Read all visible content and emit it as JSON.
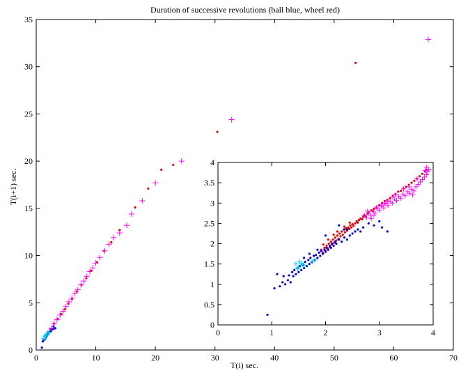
{
  "chart_data": [
    {
      "id": "main",
      "type": "scatter",
      "title": "Duration of successive revolutions (ball blue, wheel red)",
      "xlabel": "T(i) sec.",
      "ylabel": "T(i+1) sec.",
      "xlim": [
        0,
        70
      ],
      "ylim": [
        0,
        35
      ],
      "xticks": [
        "0",
        "10",
        "20",
        "30",
        "40",
        "50",
        "60",
        "70"
      ],
      "yticks": [
        "0",
        "5",
        "10",
        "15",
        "20",
        "25",
        "30",
        "35"
      ],
      "grid": false,
      "series": [
        {
          "marker": "dot",
          "color": "#e00000",
          "points": [
            [
              1.6,
              1.6
            ],
            [
              2.0,
              1.9
            ],
            [
              2.4,
              2.2
            ],
            [
              3.0,
              2.8
            ],
            [
              3.6,
              3.3
            ],
            [
              4.2,
              3.8
            ],
            [
              4.8,
              4.3
            ],
            [
              5.4,
              4.9
            ],
            [
              6.0,
              5.4
            ],
            [
              6.8,
              6.2
            ],
            [
              7.6,
              6.9
            ],
            [
              8.4,
              7.6
            ],
            [
              9.2,
              8.4
            ],
            [
              10.2,
              9.3
            ],
            [
              11.4,
              10.5
            ],
            [
              12.6,
              11.4
            ],
            [
              14.0,
              12.7
            ],
            [
              16.6,
              15.1
            ],
            [
              18.8,
              17.1
            ],
            [
              21.0,
              19.1
            ],
            [
              23.0,
              19.6
            ],
            [
              30.4,
              23.1
            ],
            [
              53.6,
              30.4
            ]
          ]
        },
        {
          "marker": "dot",
          "color": "#0000dd",
          "points": [
            [
              0.95,
              0.25
            ],
            [
              1.1,
              0.9
            ],
            [
              1.2,
              1.0
            ],
            [
              1.4,
              1.1
            ],
            [
              1.6,
              1.3
            ],
            [
              1.8,
              1.5
            ],
            [
              2.0,
              1.7
            ],
            [
              2.3,
              1.9
            ],
            [
              2.5,
              2.0
            ],
            [
              2.8,
              2.2
            ],
            [
              3.1,
              2.3
            ],
            [
              3.2,
              2.3
            ],
            [
              2.6,
              2.2
            ],
            [
              2.9,
              2.5
            ]
          ]
        },
        {
          "marker": "plus",
          "color": "#ff00ff",
          "points": [
            [
              2.5,
              2.3
            ],
            [
              3.0,
              2.8
            ],
            [
              3.5,
              3.2
            ],
            [
              4.0,
              3.7
            ],
            [
              4.5,
              4.1
            ],
            [
              5.0,
              4.6
            ],
            [
              5.5,
              5.1
            ],
            [
              6.0,
              5.5
            ],
            [
              6.5,
              6.0
            ],
            [
              7.0,
              6.4
            ],
            [
              7.5,
              6.9
            ],
            [
              8.0,
              7.3
            ],
            [
              8.5,
              7.8
            ],
            [
              9.0,
              8.3
            ],
            [
              9.5,
              8.7
            ],
            [
              10.0,
              9.2
            ],
            [
              10.7,
              9.8
            ],
            [
              11.5,
              10.5
            ],
            [
              12.2,
              11.2
            ],
            [
              13.0,
              11.9
            ],
            [
              14.0,
              12.4
            ],
            [
              15.2,
              13.2
            ],
            [
              16.0,
              14.4
            ],
            [
              17.8,
              15.8
            ],
            [
              20.0,
              17.7
            ],
            [
              24.4,
              20.0
            ],
            [
              32.8,
              24.4
            ],
            [
              65.8,
              32.9
            ]
          ]
        },
        {
          "marker": "plus",
          "color": "#00c8ff",
          "points": [
            [
              1.3,
              1.2
            ],
            [
              1.45,
              1.4
            ],
            [
              1.6,
              1.5
            ],
            [
              1.8,
              1.65
            ],
            [
              2.0,
              1.8
            ],
            [
              2.2,
              1.9
            ]
          ]
        }
      ]
    },
    {
      "id": "inset",
      "type": "scatter",
      "title": "",
      "xlabel": "",
      "ylabel": "",
      "xlim": [
        0,
        4
      ],
      "ylim": [
        0,
        4
      ],
      "xticks": [
        "0",
        "1",
        "2",
        "3",
        "4"
      ],
      "yticks": [
        "0",
        "0.5",
        "1",
        "1.5",
        "2",
        "2.5",
        "3",
        "3.5",
        "4"
      ],
      "grid": false,
      "series": [
        {
          "marker": "dot",
          "color": "#e00000",
          "points": [
            [
              1.92,
              1.85
            ],
            [
              1.95,
              1.78
            ],
            [
              1.98,
              1.9
            ],
            [
              2.0,
              1.82
            ],
            [
              2.02,
              1.95
            ],
            [
              2.04,
              1.88
            ],
            [
              2.06,
              2.0
            ],
            [
              2.08,
              1.92
            ],
            [
              2.1,
              2.05
            ],
            [
              2.12,
              1.98
            ],
            [
              2.14,
              2.1
            ],
            [
              2.16,
              2.02
            ],
            [
              2.18,
              2.15
            ],
            [
              2.2,
              2.08
            ],
            [
              2.22,
              2.2
            ],
            [
              2.24,
              2.12
            ],
            [
              2.26,
              2.25
            ],
            [
              2.28,
              2.18
            ],
            [
              2.3,
              2.3
            ],
            [
              2.32,
              2.22
            ],
            [
              2.34,
              2.35
            ],
            [
              2.36,
              2.28
            ],
            [
              2.38,
              2.38
            ],
            [
              2.4,
              2.32
            ],
            [
              2.42,
              2.4
            ],
            [
              2.44,
              2.36
            ],
            [
              2.46,
              2.45
            ],
            [
              2.48,
              2.4
            ],
            [
              2.5,
              2.48
            ],
            [
              2.52,
              2.44
            ],
            [
              2.55,
              2.5
            ],
            [
              2.58,
              2.55
            ],
            [
              2.6,
              2.52
            ],
            [
              2.62,
              2.58
            ],
            [
              2.65,
              2.62
            ],
            [
              2.68,
              2.6
            ],
            [
              2.7,
              2.66
            ],
            [
              2.72,
              2.7
            ],
            [
              2.75,
              2.68
            ],
            [
              2.78,
              2.74
            ],
            [
              2.8,
              2.78
            ],
            [
              2.85,
              2.82
            ],
            [
              2.88,
              2.8
            ],
            [
              2.9,
              2.86
            ],
            [
              2.95,
              2.9
            ],
            [
              3.0,
              2.95
            ],
            [
              3.05,
              3.0
            ],
            [
              3.1,
              3.05
            ],
            [
              3.15,
              3.08
            ],
            [
              3.2,
              3.12
            ],
            [
              3.25,
              3.18
            ],
            [
              3.3,
              3.22
            ],
            [
              3.35,
              3.28
            ],
            [
              3.4,
              3.3
            ],
            [
              3.45,
              3.36
            ],
            [
              3.5,
              3.4
            ],
            [
              3.55,
              3.45
            ],
            [
              3.6,
              3.5
            ],
            [
              3.65,
              3.55
            ],
            [
              3.7,
              3.6
            ],
            [
              3.75,
              3.66
            ],
            [
              3.8,
              3.72
            ],
            [
              3.85,
              3.78
            ],
            [
              3.88,
              3.82
            ],
            [
              2.22,
              2.3
            ],
            [
              2.35,
              2.42
            ],
            [
              2.45,
              2.52
            ],
            [
              2.05,
              2.1
            ],
            [
              2.15,
              2.22
            ],
            [
              1.96,
              1.98
            ]
          ]
        },
        {
          "marker": "dot",
          "color": "#0000dd",
          "points": [
            [
              0.92,
              0.25
            ],
            [
              1.05,
              0.9
            ],
            [
              1.1,
              1.25
            ],
            [
              1.15,
              0.95
            ],
            [
              1.2,
              1.05
            ],
            [
              1.22,
              1.2
            ],
            [
              1.25,
              1.0
            ],
            [
              1.3,
              1.1
            ],
            [
              1.32,
              1.22
            ],
            [
              1.35,
              1.05
            ],
            [
              1.38,
              1.3
            ],
            [
              1.4,
              1.2
            ],
            [
              1.42,
              1.35
            ],
            [
              1.45,
              1.25
            ],
            [
              1.48,
              1.4
            ],
            [
              1.5,
              1.3
            ],
            [
              1.52,
              1.45
            ],
            [
              1.55,
              1.35
            ],
            [
              1.58,
              1.48
            ],
            [
              1.6,
              1.4
            ],
            [
              1.62,
              1.55
            ],
            [
              1.65,
              1.45
            ],
            [
              1.68,
              1.6
            ],
            [
              1.7,
              1.5
            ],
            [
              1.72,
              1.65
            ],
            [
              1.75,
              1.55
            ],
            [
              1.78,
              1.7
            ],
            [
              1.8,
              1.6
            ],
            [
              1.82,
              1.72
            ],
            [
              1.85,
              1.65
            ],
            [
              1.88,
              1.78
            ],
            [
              1.9,
              1.7
            ],
            [
              1.92,
              1.82
            ],
            [
              1.95,
              1.75
            ],
            [
              1.98,
              1.85
            ],
            [
              2.0,
              1.8
            ],
            [
              2.02,
              1.9
            ],
            [
              2.05,
              1.85
            ],
            [
              2.08,
              1.95
            ],
            [
              2.1,
              1.9
            ],
            [
              2.12,
              2.0
            ],
            [
              2.15,
              1.95
            ],
            [
              2.18,
              2.05
            ],
            [
              2.2,
              2.0
            ],
            [
              2.25,
              2.1
            ],
            [
              2.3,
              2.05
            ],
            [
              2.35,
              2.15
            ],
            [
              2.4,
              2.1
            ],
            [
              2.45,
              2.2
            ],
            [
              2.5,
              2.25
            ],
            [
              2.55,
              2.3
            ],
            [
              2.6,
              2.35
            ],
            [
              2.65,
              2.3
            ],
            [
              2.7,
              2.4
            ],
            [
              2.8,
              2.5
            ],
            [
              2.9,
              2.45
            ],
            [
              3.0,
              2.55
            ],
            [
              3.15,
              2.3
            ],
            [
              3.05,
              2.4
            ],
            [
              2.25,
              2.45
            ],
            [
              2.35,
              2.35
            ],
            [
              1.6,
              1.65
            ],
            [
              1.7,
              1.75
            ],
            [
              1.85,
              1.85
            ],
            [
              2.0,
              2.2
            ],
            [
              2.4,
              2.35
            ]
          ]
        },
        {
          "marker": "plus",
          "color": "#ff00ff",
          "points": [
            [
              2.72,
              2.7
            ],
            [
              2.76,
              2.64
            ],
            [
              2.8,
              2.75
            ],
            [
              2.84,
              2.7
            ],
            [
              2.88,
              2.8
            ],
            [
              2.92,
              2.76
            ],
            [
              2.96,
              2.86
            ],
            [
              3.0,
              2.82
            ],
            [
              3.04,
              2.92
            ],
            [
              3.08,
              2.88
            ],
            [
              3.12,
              2.98
            ],
            [
              3.16,
              2.94
            ],
            [
              3.2,
              3.04
            ],
            [
              3.24,
              3.0
            ],
            [
              3.28,
              3.1
            ],
            [
              3.32,
              3.06
            ],
            [
              3.36,
              3.16
            ],
            [
              3.4,
              3.12
            ],
            [
              3.44,
              3.22
            ],
            [
              3.48,
              3.18
            ],
            [
              3.52,
              3.28
            ],
            [
              3.56,
              3.24
            ],
            [
              3.6,
              3.34
            ],
            [
              3.64,
              3.3
            ],
            [
              3.68,
              3.4
            ],
            [
              3.72,
              3.46
            ],
            [
              3.76,
              3.52
            ],
            [
              3.8,
              3.58
            ],
            [
              3.84,
              3.64
            ],
            [
              3.88,
              3.7
            ],
            [
              3.9,
              3.78
            ],
            [
              3.92,
              3.82
            ],
            [
              3.88,
              3.88
            ],
            [
              3.85,
              3.8
            ],
            [
              3.62,
              3.2
            ],
            [
              3.45,
              3.35
            ],
            [
              3.3,
              3.2
            ],
            [
              3.1,
              3.0
            ],
            [
              2.95,
              2.9
            ],
            [
              2.85,
              2.62
            ],
            [
              2.78,
              2.8
            ],
            [
              3.55,
              3.4
            ],
            [
              3.7,
              3.6
            ],
            [
              3.25,
              3.15
            ],
            [
              3.05,
              2.95
            ],
            [
              2.9,
              2.7
            ],
            [
              3.15,
              3.05
            ]
          ]
        },
        {
          "marker": "plus",
          "color": "#00c8ff",
          "points": [
            [
              1.45,
              1.5
            ],
            [
              1.5,
              1.42
            ],
            [
              1.55,
              1.52
            ],
            [
              1.6,
              1.45
            ],
            [
              1.75,
              1.55
            ],
            [
              1.8,
              1.6
            ],
            [
              1.48,
              1.38
            ],
            [
              1.52,
              1.55
            ],
            [
              1.58,
              1.48
            ]
          ]
        }
      ]
    }
  ]
}
